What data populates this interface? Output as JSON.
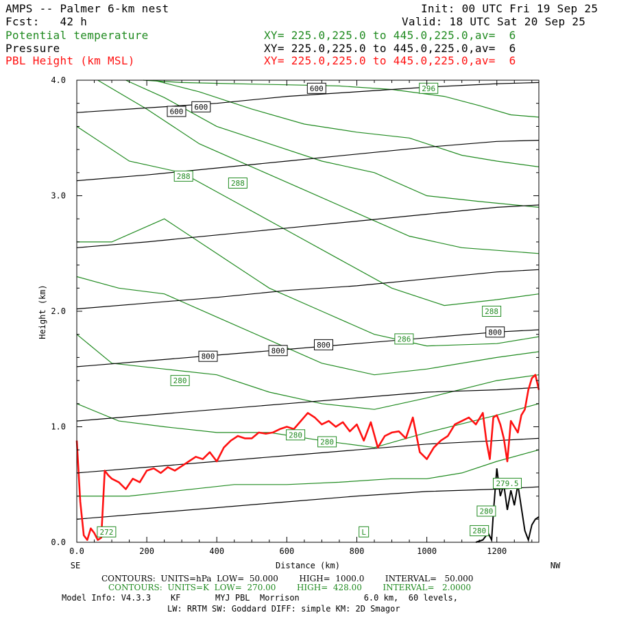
{
  "header": {
    "title": "AMPS -- Palmer 6-km nest",
    "fcst": "Fcst:   42 h",
    "init": "Init: 00 UTC Fri 19 Sep 25",
    "valid": "Valid: 18 UTC Sat 20 Sep 25",
    "fields": [
      {
        "name": "Potential temperature",
        "xy": "XY= 225.0,225.0 to 445.0,225.0,av=  6",
        "color": "#1f8a1f"
      },
      {
        "name": "Pressure",
        "xy": "XY= 225.0,225.0 to 445.0,225.0,av=  6",
        "color": "#000000"
      },
      {
        "name": "PBL Height (km MSL)",
        "xy": "XY= 225.0,225.0 to 445.0,225.0,av=  6",
        "color": "#ff1010"
      }
    ]
  },
  "axes": {
    "left_label": "SE",
    "right_label": "NW"
  },
  "footer": {
    "contours_p": "CONTOURS:  UNITS=hPa  LOW=  50.000        HIGH=  1000.0        INTERVAL=   50.000",
    "contours_t": "CONTOURS:  UNITS=K  LOW=  270.00        HIGH=  428.00        INTERVAL=   2.0000",
    "model_info": "Model Info: V4.3.3    KF       MYJ PBL  Morrison             6.0 km,  60 levels,",
    "physics": "LW: RRTM SW: Goddard DIFF: simple KM: 2D Smagor"
  },
  "chart_data": {
    "type": "line",
    "xlabel": "Distance (km)",
    "ylabel": "Height (km)",
    "xlim": [
      0,
      1320
    ],
    "ylim": [
      0,
      4.0
    ],
    "xticks": [
      0,
      200,
      400,
      600,
      800,
      1000,
      1200
    ],
    "xtick_labels": [
      "0.0",
      "200",
      "400",
      "600",
      "800",
      "1000",
      "1200"
    ],
    "yticks": [
      0,
      1,
      2,
      3,
      4
    ],
    "ytick_labels": [
      "0.0",
      "1.0",
      "2.0",
      "3.0",
      "4.0"
    ],
    "grid": false,
    "pbl_height": {
      "color": "#ff1010",
      "x": [
        0,
        10,
        20,
        30,
        40,
        50,
        60,
        70,
        80,
        90,
        100,
        120,
        140,
        160,
        180,
        200,
        220,
        240,
        260,
        280,
        300,
        320,
        340,
        360,
        380,
        400,
        420,
        440,
        460,
        480,
        500,
        520,
        540,
        560,
        580,
        600,
        620,
        640,
        660,
        680,
        700,
        720,
        740,
        760,
        780,
        800,
        820,
        840,
        860,
        880,
        900,
        920,
        940,
        960,
        980,
        1000,
        1020,
        1040,
        1060,
        1080,
        1100,
        1120,
        1140,
        1160,
        1170,
        1180,
        1190,
        1200,
        1210,
        1220,
        1230,
        1240,
        1250,
        1260,
        1270,
        1280,
        1290,
        1300,
        1310,
        1320
      ],
      "y": [
        0.88,
        0.35,
        0.06,
        0.02,
        0.12,
        0.08,
        0.02,
        0.04,
        0.62,
        0.58,
        0.55,
        0.52,
        0.46,
        0.55,
        0.52,
        0.62,
        0.64,
        0.6,
        0.65,
        0.62,
        0.66,
        0.7,
        0.74,
        0.72,
        0.78,
        0.7,
        0.82,
        0.88,
        0.92,
        0.9,
        0.9,
        0.95,
        0.94,
        0.95,
        0.98,
        1.0,
        0.98,
        1.05,
        1.12,
        1.08,
        1.02,
        1.05,
        1.0,
        1.04,
        0.96,
        1.02,
        0.88,
        1.04,
        0.82,
        0.92,
        0.95,
        0.96,
        0.9,
        1.08,
        0.78,
        0.72,
        0.82,
        0.88,
        0.92,
        1.02,
        1.05,
        1.08,
        1.02,
        1.12,
        0.88,
        0.72,
        1.08,
        1.1,
        1.02,
        0.9,
        0.7,
        1.05,
        1.0,
        0.95,
        1.1,
        1.15,
        1.32,
        1.42,
        1.45,
        1.32
      ]
    },
    "terrain": {
      "color": "#000000",
      "x": [
        1140,
        1160,
        1175,
        1185,
        1190,
        1200,
        1210,
        1220,
        1230,
        1240,
        1250,
        1260,
        1270,
        1280,
        1290,
        1300,
        1310,
        1320
      ],
      "y": [
        0.0,
        0.02,
        0.08,
        0.02,
        0.25,
        0.64,
        0.4,
        0.5,
        0.28,
        0.45,
        0.32,
        0.5,
        0.3,
        0.1,
        0.02,
        0.15,
        0.2,
        0.22
      ]
    },
    "pressure_contours": [
      {
        "level": 600,
        "x": [
          0,
          200,
          400,
          600,
          800,
          1000,
          1200,
          1320
        ],
        "y": [
          3.72,
          3.76,
          3.8,
          3.86,
          3.9,
          3.94,
          3.97,
          3.98
        ]
      },
      {
        "level": 650,
        "x": [
          0,
          200,
          400,
          600,
          800,
          1000,
          1200,
          1320
        ],
        "y": [
          3.13,
          3.18,
          3.24,
          3.3,
          3.36,
          3.42,
          3.47,
          3.48
        ]
      },
      {
        "level": 700,
        "x": [
          0,
          200,
          400,
          600,
          800,
          1000,
          1200,
          1320
        ],
        "y": [
          2.55,
          2.6,
          2.66,
          2.72,
          2.78,
          2.84,
          2.9,
          2.92
        ]
      },
      {
        "level": 750,
        "x": [
          0,
          200,
          400,
          600,
          800,
          1000,
          1200,
          1320
        ],
        "y": [
          2.02,
          2.07,
          2.12,
          2.18,
          2.22,
          2.28,
          2.34,
          2.36
        ]
      },
      {
        "level": 800,
        "x": [
          0,
          200,
          400,
          600,
          800,
          1000,
          1200,
          1320
        ],
        "y": [
          1.52,
          1.57,
          1.62,
          1.67,
          1.72,
          1.77,
          1.82,
          1.84
        ]
      },
      {
        "level": 850,
        "x": [
          0,
          200,
          400,
          600,
          800,
          1000,
          1200,
          1320
        ],
        "y": [
          1.05,
          1.1,
          1.15,
          1.2,
          1.25,
          1.3,
          1.32,
          1.34
        ]
      },
      {
        "level": 900,
        "x": [
          0,
          200,
          400,
          600,
          800,
          1000,
          1200,
          1320
        ],
        "y": [
          0.6,
          0.65,
          0.7,
          0.75,
          0.8,
          0.85,
          0.88,
          0.9
        ]
      },
      {
        "level": 950,
        "x": [
          0,
          200,
          400,
          600,
          800,
          1000,
          1200,
          1320
        ],
        "y": [
          0.2,
          0.25,
          0.3,
          0.35,
          0.4,
          0.44,
          0.46,
          0.48
        ]
      }
    ],
    "pressure_labels": [
      {
        "text": "600",
        "x": 285,
        "y": 3.73
      },
      {
        "text": "600",
        "x": 355,
        "y": 3.77
      },
      {
        "text": "600",
        "x": 685,
        "y": 3.93
      },
      {
        "text": "800",
        "x": 375,
        "y": 1.61
      },
      {
        "text": "800",
        "x": 575,
        "y": 1.66
      },
      {
        "text": "800",
        "x": 705,
        "y": 1.71
      },
      {
        "text": "800",
        "x": 1195,
        "y": 1.82
      }
    ],
    "theta_contours": [
      {
        "level": 296,
        "x": [
          190,
          300,
          450,
          600,
          750,
          900,
          1050,
          1150,
          1240,
          1320
        ],
        "y": [
          4.0,
          3.98,
          3.97,
          3.96,
          3.95,
          3.92,
          3.86,
          3.78,
          3.7,
          3.68
        ]
      },
      {
        "level": 294,
        "x": [
          220,
          350,
          500,
          650,
          800,
          950,
          1100,
          1200,
          1320
        ],
        "y": [
          4.0,
          3.9,
          3.75,
          3.62,
          3.55,
          3.5,
          3.35,
          3.3,
          3.25
        ]
      },
      {
        "level": 292,
        "x": [
          140,
          250,
          400,
          550,
          700,
          850,
          1000,
          1150,
          1320
        ],
        "y": [
          4.0,
          3.85,
          3.6,
          3.45,
          3.3,
          3.2,
          3.0,
          2.95,
          2.9
        ]
      },
      {
        "level": 290,
        "x": [
          60,
          200,
          350,
          500,
          650,
          800,
          950,
          1100,
          1320
        ],
        "y": [
          4.0,
          3.75,
          3.45,
          3.25,
          3.05,
          2.85,
          2.65,
          2.55,
          2.5
        ]
      },
      {
        "level": 288,
        "x": [
          0,
          150,
          300,
          450,
          600,
          750,
          900,
          1050,
          1200,
          1320
        ],
        "y": [
          3.6,
          3.3,
          3.2,
          2.95,
          2.7,
          2.45,
          2.2,
          2.05,
          2.1,
          2.15
        ]
      },
      {
        "level": 286,
        "x": [
          0,
          100,
          250,
          400,
          550,
          700,
          850,
          1000,
          1200,
          1320
        ],
        "y": [
          2.6,
          2.6,
          2.8,
          2.5,
          2.2,
          2.0,
          1.8,
          1.7,
          1.72,
          1.78
        ]
      },
      {
        "level": 284,
        "x": [
          0,
          120,
          250,
          400,
          550,
          700,
          850,
          1000,
          1200,
          1320
        ],
        "y": [
          2.3,
          2.2,
          2.15,
          1.95,
          1.75,
          1.55,
          1.45,
          1.5,
          1.6,
          1.65
        ]
      },
      {
        "level": 282,
        "x": [
          0,
          100,
          250,
          400,
          550,
          700,
          850,
          1000,
          1200,
          1320
        ],
        "y": [
          1.8,
          1.55,
          1.5,
          1.45,
          1.3,
          1.2,
          1.15,
          1.25,
          1.4,
          1.45
        ]
      },
      {
        "level": 280,
        "x": [
          0,
          120,
          250,
          400,
          550,
          700,
          850,
          1000,
          1200,
          1320
        ],
        "y": [
          1.2,
          1.05,
          1.0,
          0.95,
          0.95,
          0.88,
          0.82,
          0.95,
          1.1,
          1.2
        ]
      },
      {
        "level": 278,
        "x": [
          0,
          150,
          300,
          450,
          600,
          750,
          900,
          1000,
          1100,
          1200,
          1320
        ],
        "y": [
          0.4,
          0.4,
          0.45,
          0.5,
          0.5,
          0.52,
          0.55,
          0.55,
          0.6,
          0.7,
          0.8
        ]
      }
    ],
    "theta_labels": [
      {
        "text": "296",
        "x": 1005,
        "y": 3.93
      },
      {
        "text": "288",
        "x": 305,
        "y": 3.17
      },
      {
        "text": "288",
        "x": 460,
        "y": 3.11
      },
      {
        "text": "288",
        "x": 1185,
        "y": 2.0
      },
      {
        "text": "286",
        "x": 935,
        "y": 1.76
      },
      {
        "text": "280",
        "x": 295,
        "y": 1.4
      },
      {
        "text": "280",
        "x": 625,
        "y": 0.93
      },
      {
        "text": "280",
        "x": 715,
        "y": 0.87
      },
      {
        "text": "280",
        "x": 1170,
        "y": 0.27
      },
      {
        "text": "280",
        "x": 1150,
        "y": 0.1
      },
      {
        "text": "279.5",
        "x": 1230,
        "y": 0.51
      },
      {
        "text": "272",
        "x": 85,
        "y": 0.09
      },
      {
        "text": "L",
        "x": 820,
        "y": 0.09
      }
    ]
  }
}
